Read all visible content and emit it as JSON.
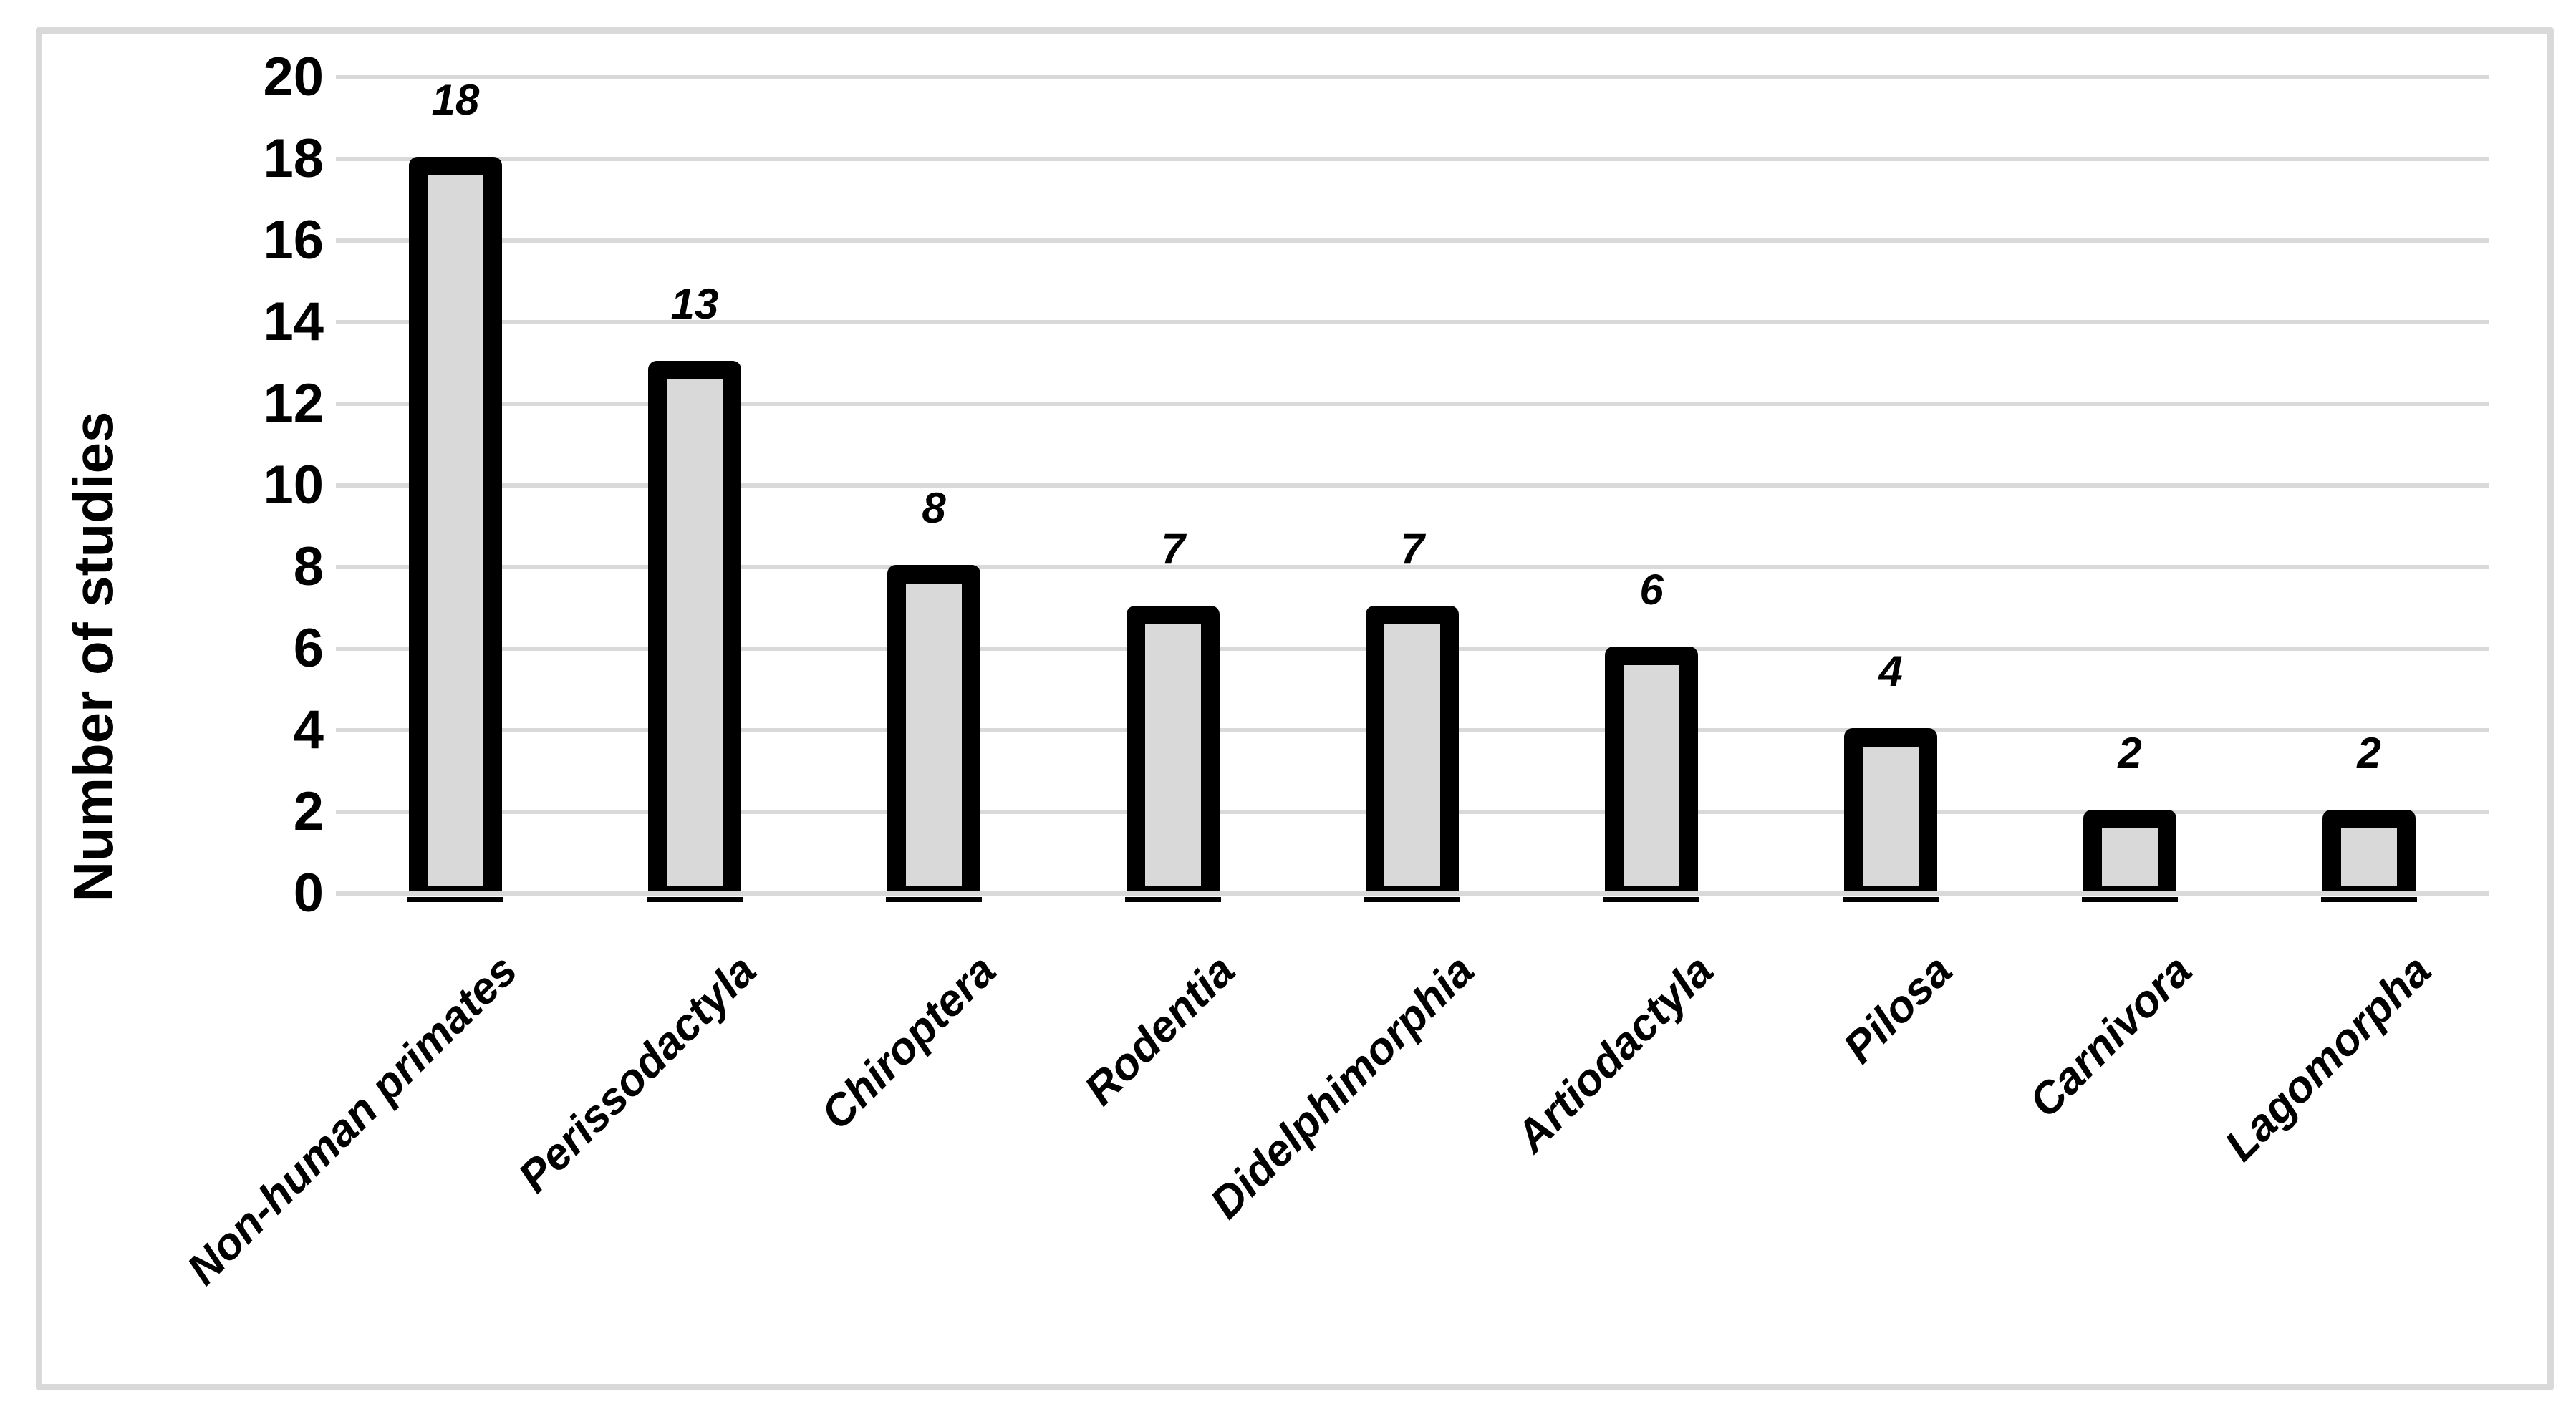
{
  "chart_data": {
    "type": "bar",
    "title": "",
    "xlabel": "",
    "ylabel": "Number of studies",
    "categories": [
      "Non-human primates",
      "Perissodactyla",
      "Chiroptera",
      "Rodentia",
      "Didelphimorphia",
      "Artiodactyla",
      "Pilosa",
      "Carnivora",
      "Lagomorpha"
    ],
    "values": [
      18,
      13,
      8,
      7,
      7,
      6,
      4,
      2,
      2
    ],
    "data_labels": [
      "18",
      "13",
      "8",
      "7",
      "7",
      "6",
      "4",
      "2",
      "2"
    ],
    "ylim": [
      0,
      20
    ],
    "ytick_step": 2,
    "ytick_labels": [
      "0",
      "2",
      "4",
      "6",
      "8",
      "10",
      "12",
      "14",
      "16",
      "18",
      "20"
    ],
    "grid": true,
    "legend": "none",
    "colors": {
      "background": "#ffffff",
      "figure_border": "#d9d9d9",
      "gridline": "#d9d9d9",
      "axis_line": "#d9d9d9",
      "bar_fill": "#d9d9d9",
      "bar_border": "#000000",
      "tick_mark": "#000000",
      "text": "#000000"
    }
  }
}
